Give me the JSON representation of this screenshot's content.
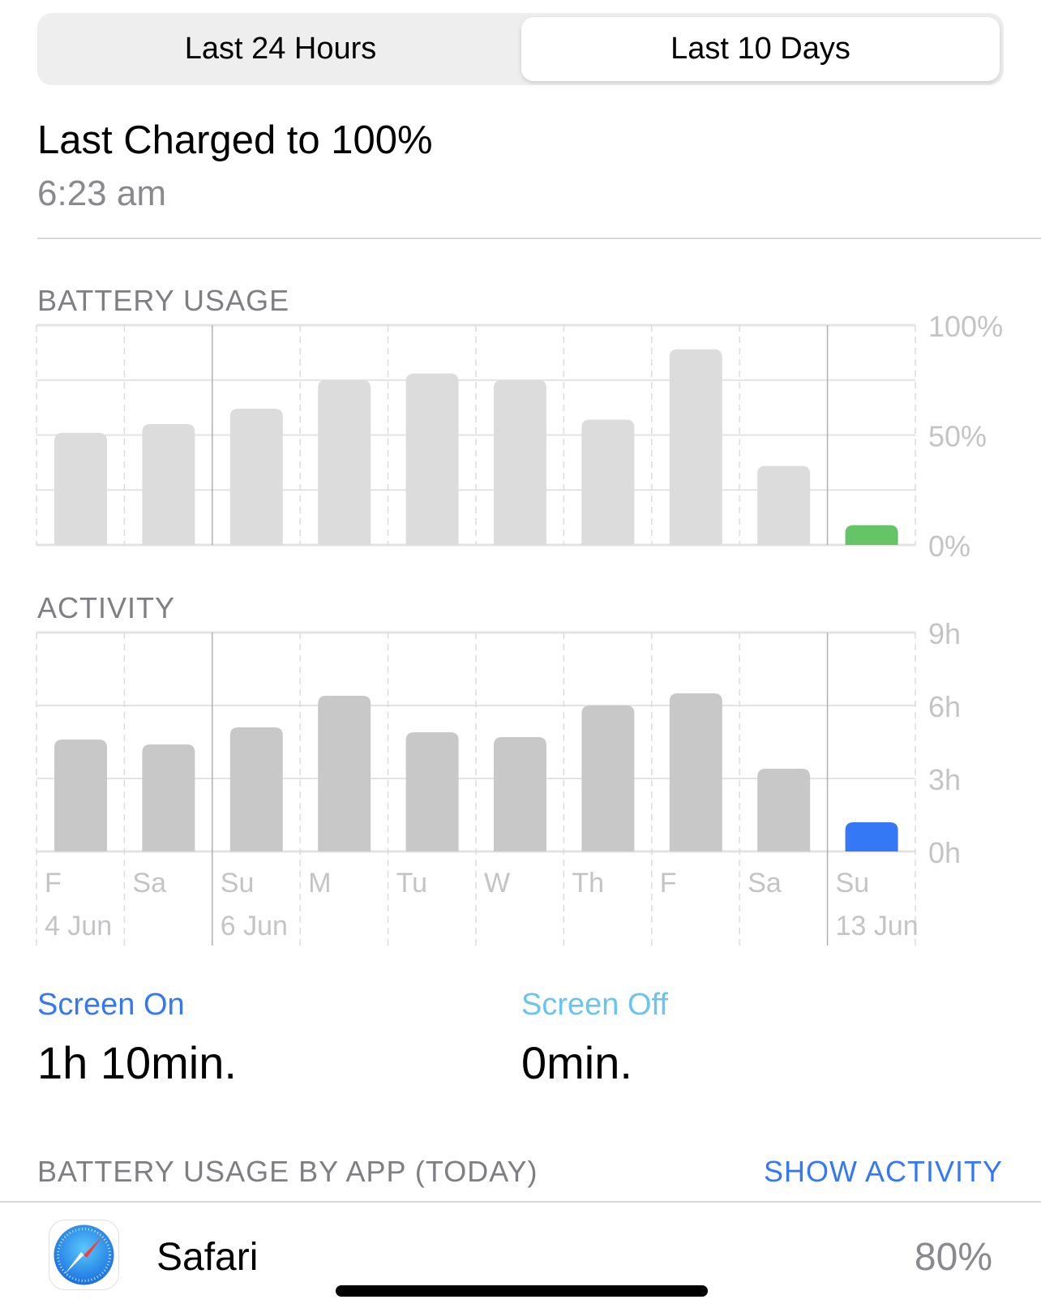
{
  "segmented": {
    "items": [
      {
        "label": "Last 24 Hours",
        "selected": false
      },
      {
        "label": "Last 10 Days",
        "selected": true
      }
    ]
  },
  "header": {
    "title": "Last Charged to 100%",
    "time": "6:23 am"
  },
  "battery_section": {
    "title": "BATTERY USAGE"
  },
  "activity_section": {
    "title": "ACTIVITY"
  },
  "chart_data": [
    {
      "type": "bar",
      "title": "BATTERY USAGE",
      "categories": [
        "F",
        "Sa",
        "Su",
        "M",
        "Tu",
        "W",
        "Th",
        "F",
        "Sa",
        "Su"
      ],
      "dates": [
        "4 Jun",
        "",
        "6 Jun",
        "",
        "",
        "",
        "",
        "",
        "",
        "13 Jun"
      ],
      "values": [
        51,
        55,
        62,
        75,
        78,
        75,
        57,
        89,
        36,
        9
      ],
      "ylim": [
        0,
        100
      ],
      "yticks": [
        "100%",
        "50%",
        "0%"
      ],
      "bar_color": "#dcdcdc",
      "highlight_color": "#65c466",
      "grid": true
    },
    {
      "type": "bar",
      "title": "ACTIVITY",
      "categories": [
        "F",
        "Sa",
        "Su",
        "M",
        "Tu",
        "W",
        "Th",
        "F",
        "Sa",
        "Su"
      ],
      "dates": [
        "4 Jun",
        "",
        "6 Jun",
        "",
        "",
        "",
        "",
        "",
        "",
        "13 Jun"
      ],
      "values": [
        4.6,
        4.4,
        5.1,
        6.4,
        4.9,
        4.7,
        6.0,
        6.5,
        3.4,
        1.2
      ],
      "ylim": [
        0,
        9
      ],
      "yticks": [
        "9h",
        "6h",
        "3h",
        "0h"
      ],
      "bar_color": "#c8c8c8",
      "highlight_color": "#3478f6",
      "grid": true
    }
  ],
  "summary": {
    "screen_on_label": "Screen On",
    "screen_on_value": "1h 10min.",
    "screen_off_label": "Screen Off",
    "screen_off_value": "0min.",
    "screen_on_color": "#3478f6",
    "screen_off_color": "#6ac4f0"
  },
  "apps_section": {
    "title": "BATTERY USAGE BY APP (TODAY)",
    "action": "SHOW ACTIVITY"
  },
  "apps": [
    {
      "name": "Safari",
      "percent": "80%",
      "icon": "safari-compass-icon"
    }
  ]
}
